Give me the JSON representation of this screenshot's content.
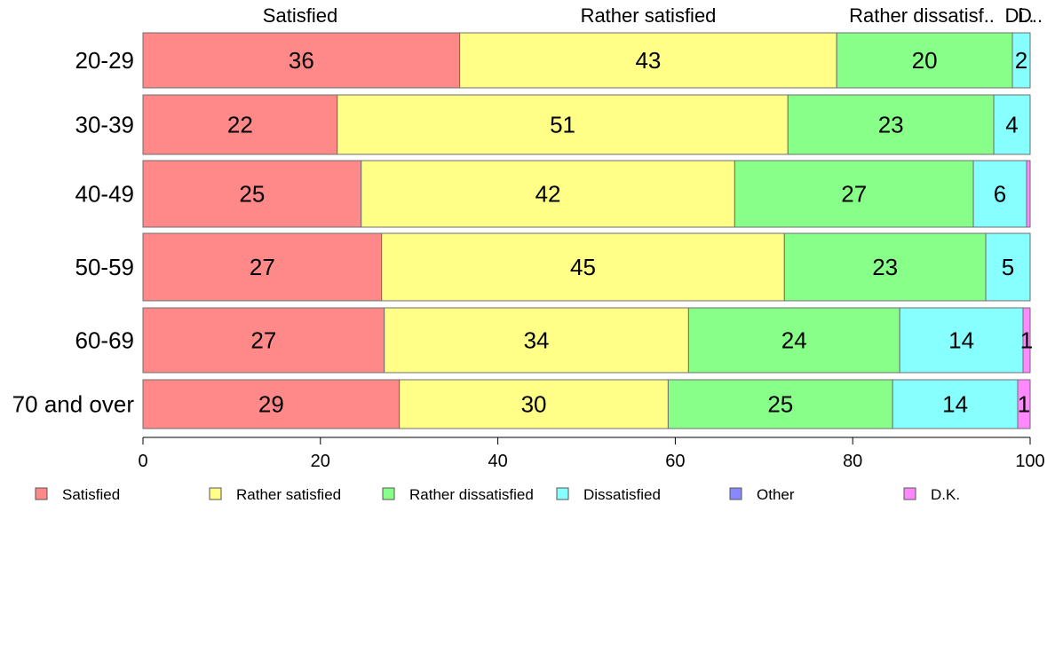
{
  "chart_data": {
    "type": "bar",
    "orientation": "horizontal",
    "stacked": true,
    "categories": [
      "20-29",
      "30-39",
      "40-49",
      "50-59",
      "60-69",
      "70 and over"
    ],
    "series": [
      {
        "name": "Satisfied",
        "color": "#ff8888",
        "values": [
          35.7,
          21.9,
          24.6,
          26.9,
          27.2,
          28.9
        ]
      },
      {
        "name": "Rather satisfied",
        "color": "#ffff88",
        "values": [
          42.5,
          50.8,
          42.1,
          45.4,
          34.3,
          30.3
        ]
      },
      {
        "name": "Rather dissatisfied",
        "color": "#88ff88",
        "values": [
          19.8,
          23.2,
          26.9,
          22.7,
          23.8,
          25.3
        ]
      },
      {
        "name": "Dissatisfied",
        "color": "#88ffff",
        "values": [
          2.0,
          4.1,
          6.0,
          5.0,
          13.9,
          14.1
        ]
      },
      {
        "name": "Other",
        "color": "#8888ff",
        "values": [
          0,
          0,
          0,
          0,
          0,
          0
        ]
      },
      {
        "name": "D.K.",
        "color": "#ff88ff",
        "values": [
          0,
          0,
          0.4,
          0,
          0.8,
          1.4
        ]
      }
    ],
    "data_labels": [
      [
        "36",
        "43",
        "20",
        "2",
        "",
        ""
      ],
      [
        "22",
        "51",
        "23",
        "4",
        "",
        ""
      ],
      [
        "25",
        "42",
        "27",
        "6",
        "",
        ""
      ],
      [
        "27",
        "45",
        "23",
        "5",
        "",
        ""
      ],
      [
        "27",
        "34",
        "24",
        "14",
        "",
        "1"
      ],
      [
        "29",
        "30",
        "25",
        "14",
        "",
        "1"
      ]
    ],
    "top_labels": [
      "Satisfied",
      "Rather satisfied",
      "Rather dissatisf..",
      "Di..",
      "D.."
    ],
    "x_ticks": [
      0,
      20,
      40,
      60,
      80,
      100
    ],
    "xlim": [
      0,
      100
    ],
    "legend": [
      "Satisfied",
      "Rather satisfied",
      "Rather dissatisfied",
      "Dissatisfied",
      "Other",
      "D.K."
    ],
    "legend_position": "bottom",
    "grid": false
  }
}
